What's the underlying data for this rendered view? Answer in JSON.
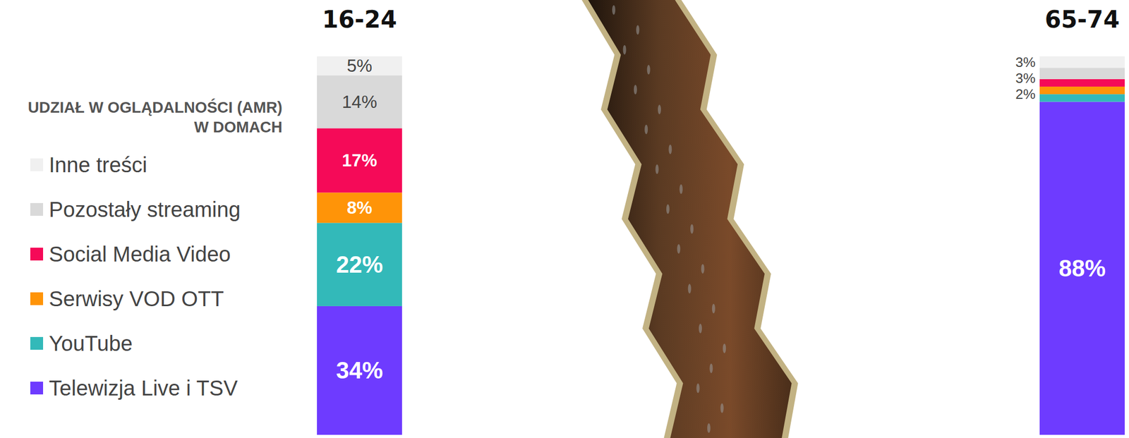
{
  "chart_data": {
    "type": "bar",
    "stacked": true,
    "data_labels": true,
    "tick_labels": false,
    "legend": "left",
    "legend_title": "UDZIAŁ W OGLĄDALNOŚCI (AMR) W DOMACH",
    "categories": [
      "16-24",
      "65-74"
    ],
    "ylim": [
      0,
      100
    ],
    "series": [
      {
        "name": "Telewizja Live i TSV",
        "color": "#6e3bff",
        "values": [
          34,
          88
        ],
        "value_labels": [
          "34%",
          "88%"
        ]
      },
      {
        "name": "YouTube",
        "color": "#33b9b9",
        "values": [
          22,
          2
        ],
        "value_labels": [
          "22%",
          null
        ]
      },
      {
        "name": "Serwisy VOD OTT",
        "color": "#ff9408",
        "values": [
          8,
          2
        ],
        "value_labels": [
          "8%",
          "2%"
        ]
      },
      {
        "name": "Social Media Video",
        "color": "#f50a58",
        "values": [
          17,
          2
        ],
        "value_labels": [
          "17%",
          null
        ]
      },
      {
        "name": "Pozostały streaming",
        "color": "#d9d9d9",
        "values": [
          14,
          3
        ],
        "value_labels": [
          "14%",
          "3%"
        ]
      },
      {
        "name": "Inne treści",
        "color": "#f0f0f0",
        "values": [
          5,
          3
        ],
        "value_labels": [
          "5%",
          "3%"
        ]
      }
    ]
  }
}
